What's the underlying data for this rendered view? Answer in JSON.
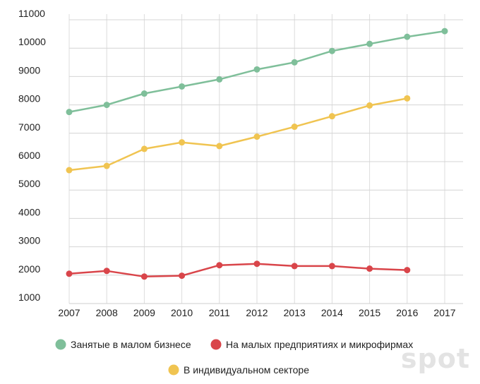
{
  "chart_data": {
    "type": "line",
    "title": "",
    "xlabel": "",
    "ylabel": "",
    "x": [
      "2007",
      "2008",
      "2009",
      "2010",
      "2011",
      "2012",
      "2013",
      "2014",
      "2015",
      "2016",
      "2017"
    ],
    "y_ticks": [
      "1000",
      "2000",
      "3000",
      "4000",
      "5000",
      "6000",
      "7000",
      "8000",
      "9000",
      "10000",
      "11000"
    ],
    "ylim": [
      1000,
      11000
    ],
    "grid": "vertical-and-horizontal",
    "legend_position": "bottom",
    "series": [
      {
        "name": "Занятые в малом бизнесе",
        "color": "#7fbf9a",
        "values": [
          7750,
          8000,
          8400,
          8650,
          8900,
          9250,
          9500,
          9900,
          10150,
          10400,
          10600
        ]
      },
      {
        "name": "На малых предприятиях и микрофирмах",
        "color": "#d9454a",
        "values": [
          2050,
          2150,
          1950,
          1980,
          2350,
          2400,
          2320,
          2320,
          2230,
          2180,
          null
        ]
      },
      {
        "name": "В индивидуальном секторе",
        "color": "#f0c451",
        "values": [
          5700,
          5850,
          6450,
          6680,
          6550,
          6880,
          7230,
          7600,
          7980,
          8230,
          null
        ]
      }
    ]
  },
  "watermark": "spot"
}
